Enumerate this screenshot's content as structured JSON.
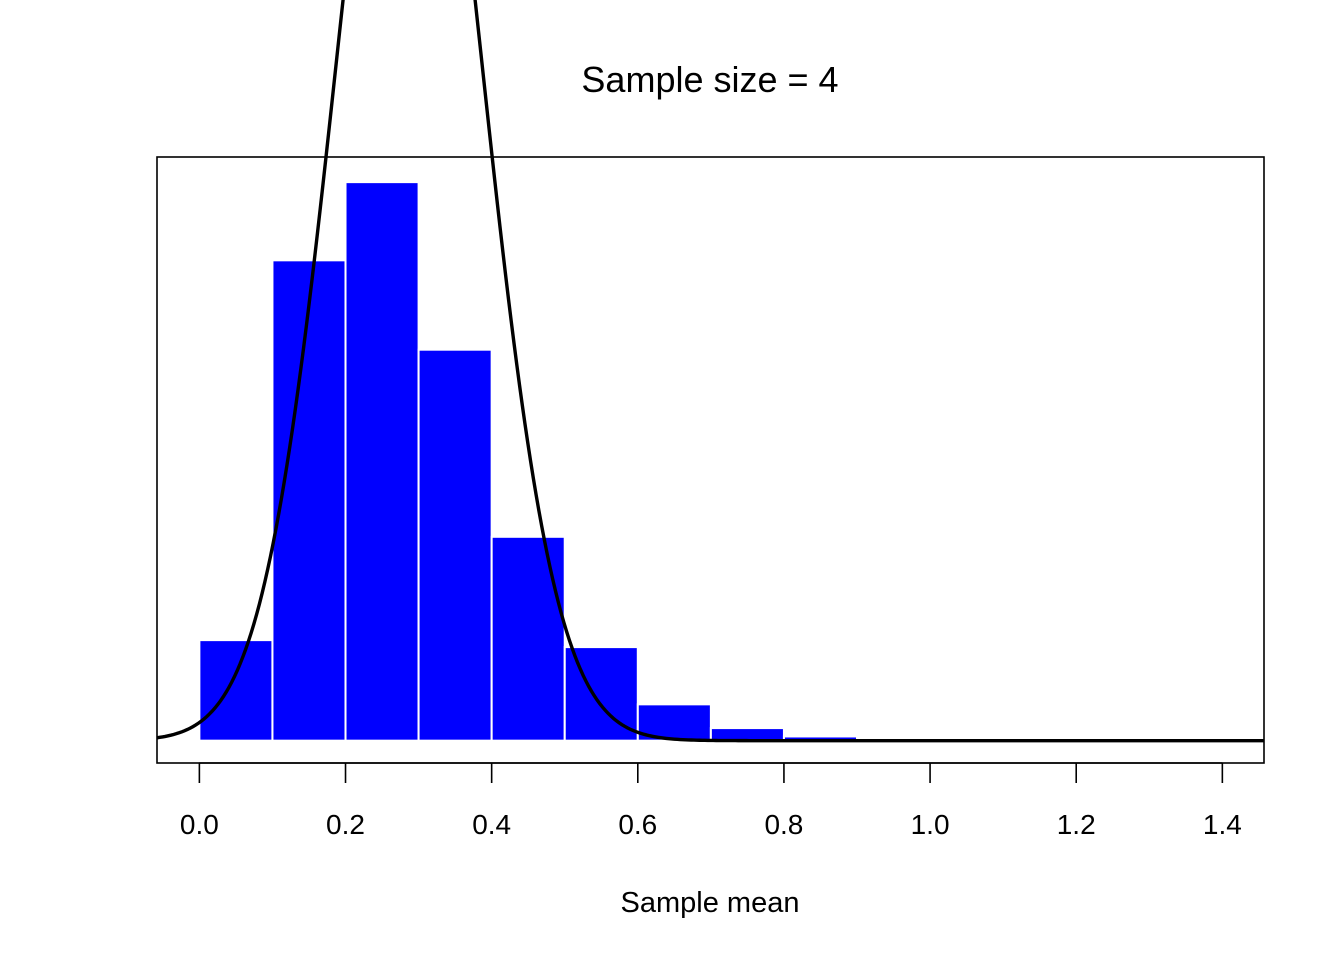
{
  "chart_data": {
    "type": "bar",
    "title": "Sample size = 4",
    "xlabel": "Sample mean",
    "ylabel": "",
    "xlim": [
      -0.058,
      1.457
    ],
    "ylim": [
      -0.08,
      2.09
    ],
    "x_ticks": [
      "0.0",
      "0.2",
      "0.4",
      "0.6",
      "0.8",
      "1.0",
      "1.2",
      "1.4"
    ],
    "x_tick_values": [
      0.0,
      0.2,
      0.4,
      0.6,
      0.8,
      1.0,
      1.2,
      1.4
    ],
    "y_axis_shown": false,
    "grid": false,
    "bins": [
      {
        "x0": 0.0,
        "x1": 0.1,
        "density": 0.36
      },
      {
        "x0": 0.1,
        "x1": 0.2,
        "density": 1.72
      },
      {
        "x0": 0.2,
        "x1": 0.3,
        "density": 2.0
      },
      {
        "x0": 0.3,
        "x1": 0.4,
        "density": 1.4
      },
      {
        "x0": 0.4,
        "x1": 0.5,
        "density": 0.73
      },
      {
        "x0": 0.5,
        "x1": 0.6,
        "density": 0.335
      },
      {
        "x0": 0.6,
        "x1": 0.7,
        "density": 0.13
      },
      {
        "x0": 0.7,
        "x1": 0.8,
        "density": 0.045
      },
      {
        "x0": 0.8,
        "x1": 0.9,
        "density": 0.015
      }
    ],
    "curve": {
      "type": "normal",
      "mean": 0.287,
      "sd": 0.1
    },
    "colors": {
      "bar_fill": "#0000ff",
      "bar_border": "#ffffff",
      "curve": "#000000",
      "frame": "#000000"
    }
  }
}
